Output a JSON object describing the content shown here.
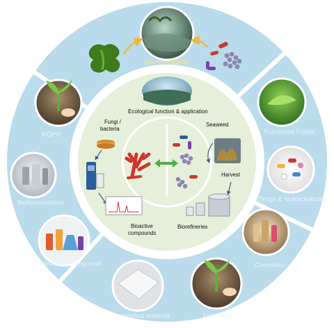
{
  "outer_ring": {
    "bioremediation": "Bioremediation",
    "functional_foods": "Functional Foods",
    "drugs": "Drugs & Nutraceuticals",
    "cosmetics": "Cosmetics",
    "fertilizers": "Fertilizers",
    "medical_material": "Medical material",
    "medicinal_compound": "Medicinal compound",
    "biofermentation": "Biofermentation",
    "pgpr": "PGPR"
  },
  "inner_circle": {
    "title": "Ecological function & application",
    "fungi_bacteria_line1": "Fungi /",
    "fungi_bacteria_line2": "bacteria",
    "seaweed": "Seaweed",
    "harvest": "Harvest",
    "bioactive_line1": "Bioactive",
    "bioactive_line2": "compounds",
    "biorefineries": "Biorefineries"
  },
  "colors": {
    "outer_ring": "#b9dbec",
    "inner_ring": "#ffffff",
    "core": "#e5efd9",
    "label_text": "#e8f4fb",
    "highlight_label": "#ffe96b",
    "arrow": "#f2b733",
    "double_arrow": "#4dae49"
  }
}
